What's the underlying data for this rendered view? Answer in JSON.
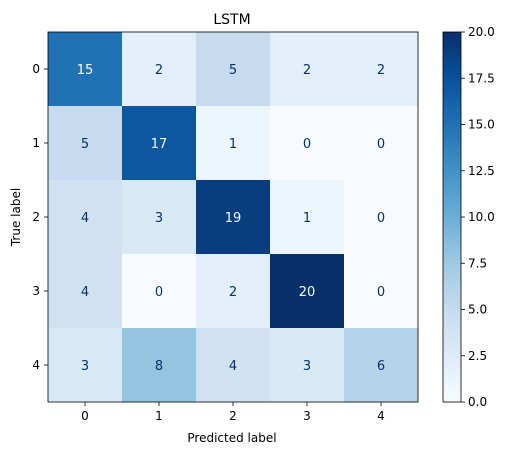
{
  "chart_data": {
    "type": "heatmap",
    "title": "LSTM",
    "xlabel": "Predicted label",
    "ylabel": "True label",
    "x_categories": [
      "0",
      "1",
      "2",
      "3",
      "4"
    ],
    "y_categories": [
      "0",
      "1",
      "2",
      "3",
      "4"
    ],
    "values": [
      [
        15,
        2,
        5,
        2,
        2
      ],
      [
        5,
        17,
        1,
        0,
        0
      ],
      [
        4,
        3,
        19,
        1,
        0
      ],
      [
        4,
        0,
        2,
        20,
        0
      ],
      [
        3,
        8,
        4,
        3,
        6
      ]
    ],
    "colormap": "Blues",
    "vmin": 0,
    "vmax": 20,
    "colorbar_ticks": [
      "0.0",
      "2.5",
      "5.0",
      "7.5",
      "10.0",
      "12.5",
      "15.0",
      "17.5",
      "20.0"
    ],
    "colorbar_tick_values": [
      0,
      2.5,
      5,
      7.5,
      10,
      12.5,
      15,
      17.5,
      20
    ]
  }
}
